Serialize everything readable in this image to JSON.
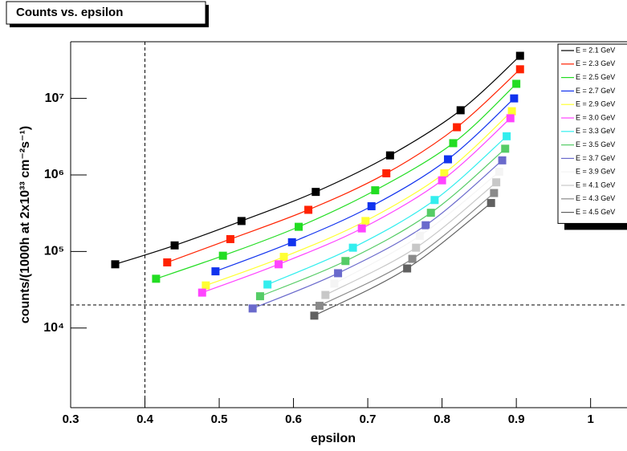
{
  "chart_data": {
    "type": "scatter",
    "title": "Counts vs. epsilon",
    "x_label": "epsilon",
    "y_label": "counts/(1000h at 2x10³³ cm⁻²s⁻¹)",
    "log_y": true,
    "legend": "top-right",
    "xlim": [
      0.3,
      1.049
    ],
    "ylim": [
      910,
      55000000
    ],
    "xticks": [
      0.3,
      0.4,
      0.5,
      0.6,
      0.7,
      0.8,
      0.9,
      1
    ],
    "yticks": [
      {
        "value": 10000,
        "label": "10⁴"
      },
      {
        "value": 100000,
        "label": "10⁵"
      },
      {
        "value": 1000000,
        "label": "10⁶"
      },
      {
        "value": 10000000,
        "label": "10⁷"
      }
    ],
    "reference_lines": {
      "x": 0.4,
      "y": 20000
    },
    "series": [
      {
        "name": "E = 2.1 GeV",
        "color": "#000000",
        "x": [
          0.36,
          0.44,
          0.53,
          0.63,
          0.73,
          0.825,
          0.905
        ],
        "values": [
          68000,
          120000,
          250000,
          600000,
          1800000,
          7000000,
          36000000
        ]
      },
      {
        "name": "E = 2.3 GeV",
        "color": "#ff2200",
        "x": [
          0.43,
          0.515,
          0.62,
          0.725,
          0.82,
          0.905
        ],
        "values": [
          72000,
          145000,
          350000,
          1050000,
          4200000,
          24000000
        ]
      },
      {
        "name": "E = 2.5 GeV",
        "color": "#22dd22",
        "x": [
          0.415,
          0.505,
          0.607,
          0.71,
          0.815,
          0.9
        ],
        "values": [
          44000,
          88000,
          210000,
          630000,
          2600000,
          15500000
        ]
      },
      {
        "name": "E = 2.7 GeV",
        "color": "#1133ee",
        "x": [
          0.495,
          0.598,
          0.705,
          0.808,
          0.897
        ],
        "values": [
          55000,
          132000,
          390000,
          1600000,
          10000000
        ]
      },
      {
        "name": "E = 2.9 GeV",
        "color": "#ffff33",
        "x": [
          0.482,
          0.587,
          0.697,
          0.803,
          0.894
        ],
        "values": [
          36000,
          85000,
          250000,
          1050000,
          6800000
        ]
      },
      {
        "name": "E = 3.0 GeV",
        "color": "#ff44ff",
        "x": [
          0.477,
          0.58,
          0.692,
          0.8,
          0.892
        ],
        "values": [
          29000,
          68000,
          200000,
          850000,
          5500000
        ]
      },
      {
        "name": "E = 3.3 GeV",
        "color": "#33eeee",
        "x": [
          0.565,
          0.68,
          0.79,
          0.887
        ],
        "values": [
          37000,
          112000,
          470000,
          3200000
        ]
      },
      {
        "name": "E = 3.5 GeV",
        "color": "#55cc66",
        "x": [
          0.555,
          0.67,
          0.785,
          0.885
        ],
        "values": [
          26000,
          75000,
          320000,
          2200000
        ]
      },
      {
        "name": "E = 3.7 GeV",
        "color": "#6a6acc",
        "x": [
          0.545,
          0.66,
          0.778,
          0.881
        ],
        "values": [
          18000,
          52000,
          220000,
          1550000
        ]
      },
      {
        "name": "E = 3.9 GeV",
        "color": "#f4f4f4",
        "x": [
          0.655,
          0.77,
          0.877
        ],
        "values": [
          38000,
          160000,
          1100000
        ]
      },
      {
        "name": "E = 4.1 GeV",
        "color": "#c8c8c8",
        "x": [
          0.643,
          0.765,
          0.873
        ],
        "values": [
          27000,
          112000,
          800000
        ]
      },
      {
        "name": "E = 4.3 GeV",
        "color": "#8a8a8a",
        "x": [
          0.635,
          0.76,
          0.87
        ],
        "values": [
          19500,
          80000,
          580000
        ]
      },
      {
        "name": "E = 4.5 GeV",
        "color": "#606060",
        "x": [
          0.628,
          0.753,
          0.866
        ],
        "values": [
          14500,
          60000,
          430000
        ]
      }
    ]
  }
}
